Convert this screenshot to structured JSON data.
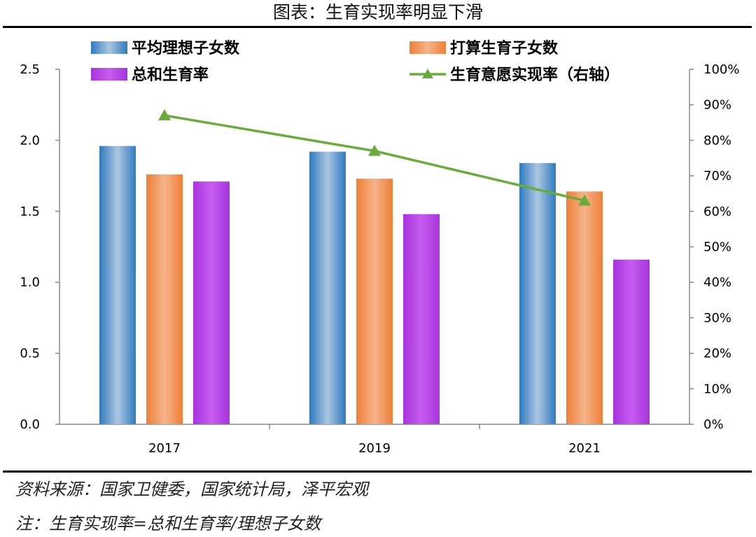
{
  "title": "图表：生育实现率明显下滑",
  "footer": {
    "source": "资料来源：国家卫健委，国家统计局，泽平宏观",
    "note": "注：生育实现率=总和生育率/理想子女数"
  },
  "colors": {
    "ideal": "#3a84c4",
    "planned": "#ef8a48",
    "tfr": "#b944e3",
    "rate": "#6aac3a"
  },
  "chart_data": {
    "type": "bar",
    "categories": [
      "2017",
      "2019",
      "2021"
    ],
    "series": [
      {
        "name": "平均理想子女数",
        "values": [
          1.96,
          1.92,
          1.84
        ],
        "axis": "left"
      },
      {
        "name": "打算生育子女数",
        "values": [
          1.76,
          1.73,
          1.64
        ],
        "axis": "left"
      },
      {
        "name": "总和生育率",
        "values": [
          1.71,
          1.48,
          1.16
        ],
        "axis": "left"
      },
      {
        "name": "生育意愿实现率（右轴）",
        "type": "line",
        "values": [
          0.87,
          0.77,
          0.63
        ],
        "axis": "right"
      }
    ],
    "ylim_left": [
      0,
      2.5
    ],
    "yticks_left": [
      "0.0",
      "0.5",
      "1.0",
      "1.5",
      "2.0",
      "2.5"
    ],
    "ylim_right": [
      0,
      1.0
    ],
    "yticks_right": [
      "0%",
      "10%",
      "20%",
      "30%",
      "40%",
      "50%",
      "60%",
      "70%",
      "80%",
      "90%",
      "100%"
    ],
    "legend_placement": "top, two columns",
    "grid": false
  }
}
